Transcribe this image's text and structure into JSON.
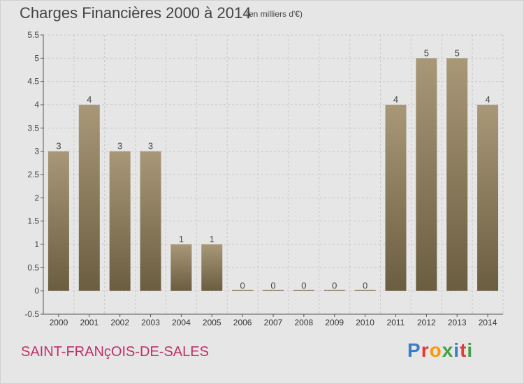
{
  "header": {
    "title": "Charges Financières 2000 à 2014",
    "subtitle": "(en milliers d'€)"
  },
  "footer": {
    "commune": "SAINT-FRANçOIS-DE-SALES",
    "logo_text": "Proxiti",
    "logo_colors": [
      "#3a7ec8",
      "#e53935",
      "#ff9800",
      "#43a047",
      "#3a7ec8",
      "#e53935",
      "#43a047"
    ]
  },
  "chart_data": {
    "type": "bar",
    "title": "Charges Financières 2000 à 2014",
    "subtitle": "(en milliers d'€)",
    "xlabel": "",
    "ylabel": "",
    "categories": [
      "2000",
      "2001",
      "2002",
      "2003",
      "2004",
      "2005",
      "2006",
      "2007",
      "2008",
      "2009",
      "2010",
      "2011",
      "2012",
      "2013",
      "2014"
    ],
    "values": [
      3,
      4,
      3,
      3,
      1,
      1,
      0,
      0,
      0,
      0,
      0,
      4,
      5,
      5,
      4
    ],
    "data_labels": [
      "3",
      "4",
      "3",
      "3",
      "1",
      "1",
      "0",
      "0",
      "0",
      "0",
      "0",
      "4",
      "5",
      "5",
      "4"
    ],
    "ylim": [
      -0.5,
      5.5
    ],
    "yticks": [
      "-0.5",
      "0",
      "0.5",
      "1",
      "1.5",
      "2",
      "2.5",
      "3",
      "3.5",
      "4",
      "4.5",
      "5",
      "5.5"
    ],
    "grid": true,
    "bar_color_top": "#a89878",
    "bar_color_bottom": "#6b5d40"
  }
}
